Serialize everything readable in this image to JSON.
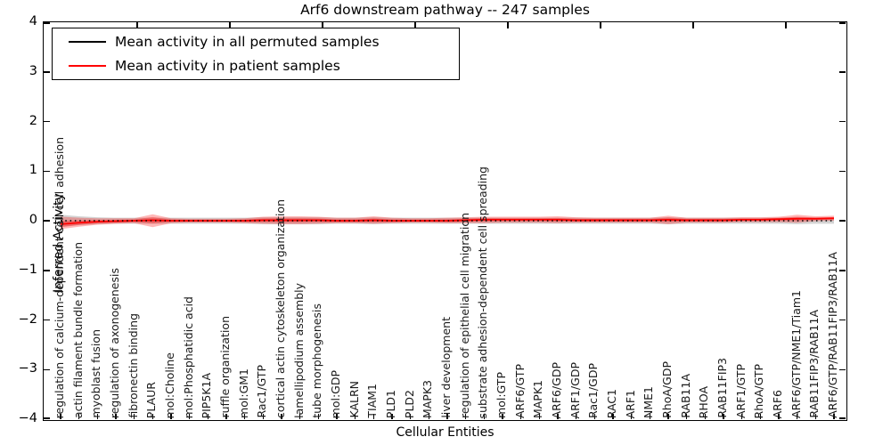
{
  "figure": {
    "title": "Arf6 downstream pathway -- 247 samples"
  },
  "legend": {
    "items": [
      {
        "label": "Mean activity in all permuted samples",
        "color": "#000000"
      },
      {
        "label": "Mean activity in patient samples",
        "color": "#ff0000"
      }
    ]
  },
  "axes": {
    "ylabel": "Inferred Activity",
    "xlabel": "Cellular Entities",
    "ytick_labels": [
      "4",
      "3",
      "2",
      "1",
      "0",
      "−1",
      "−2",
      "−3",
      "−4"
    ]
  },
  "chart_data": {
    "type": "line",
    "title": "Arf6 downstream pathway -- 247 samples",
    "xlabel": "Cellular Entities",
    "ylabel": "Inferred Activity",
    "ylim": [
      -4,
      4
    ],
    "grid": false,
    "legend_position": "upper left",
    "categories": [
      "regulation of calcium-dependent cell-cell adhesion",
      "actin filament bundle formation",
      "myoblast fusion",
      "regulation of axonogenesis",
      "fibronectin binding",
      "PLAUR",
      "mol:Choline",
      "mol:Phosphatidic acid",
      "PIP5K1A",
      "ruffle organization",
      "mol:GM1",
      "Rac1/GTP",
      "cortical actin cytoskeleton organization",
      "lamellipodium assembly",
      "tube morphogenesis",
      "mol:GDP",
      "KALRN",
      "TIAM1",
      "PLD1",
      "PLD2",
      "MAPK3",
      "liver development",
      "regulation of epithelial cell migration",
      "substrate adhesion-dependent cell spreading",
      "mol:GTP",
      "ARF6/GTP",
      "MAPK1",
      "ARF6/GDP",
      "ARF1/GDP",
      "Rac1/GDP",
      "RAC1",
      "ARF1",
      "NME1",
      "RhoA/GDP",
      "RAB11A",
      "RHOA",
      "RAB11FIP3",
      "ARF1/GTP",
      "RhoA/GTP",
      "ARF6",
      "ARF6/GTP/NME1/Tiam1",
      "RAB11FIP3/RAB11A",
      "ARF6/GTP/RAB11FIP3/RAB11A"
    ],
    "series": [
      {
        "name": "Mean activity in all permuted samples",
        "color": "#000000",
        "style": "dotted",
        "values": [
          0,
          0,
          0,
          0,
          0,
          0,
          0,
          0,
          0,
          0,
          0,
          0,
          0,
          0,
          0,
          0,
          0,
          0,
          0,
          0,
          0,
          0,
          0,
          0,
          0,
          0,
          0,
          0,
          0,
          0,
          0,
          0,
          0,
          0,
          0,
          0,
          0,
          0,
          0,
          0,
          0,
          0,
          0
        ]
      },
      {
        "name": "Mean activity in patient samples",
        "color": "#ff0000",
        "style": "solid",
        "values": [
          -0.07,
          -0.04,
          -0.02,
          -0.01,
          0.0,
          0.01,
          0.0,
          0.0,
          0.0,
          0.0,
          0.0,
          0.01,
          0.01,
          0.01,
          0.01,
          0.0,
          0.0,
          0.01,
          0.0,
          0.0,
          0.0,
          0.0,
          0.01,
          0.02,
          0.02,
          0.02,
          0.02,
          0.02,
          0.01,
          0.01,
          0.01,
          0.01,
          0.01,
          0.02,
          0.01,
          0.01,
          0.01,
          0.02,
          0.02,
          0.03,
          0.04,
          0.04,
          0.05
        ]
      }
    ],
    "bands": [
      {
        "name": "permuted samples spread",
        "color": "rgba(110,110,110,0.30)",
        "upper": [
          0.12,
          0.09,
          0.07,
          0.06,
          0.06,
          0.06,
          0.06,
          0.06,
          0.06,
          0.06,
          0.06,
          0.07,
          0.07,
          0.07,
          0.07,
          0.06,
          0.06,
          0.07,
          0.06,
          0.06,
          0.06,
          0.06,
          0.06,
          0.06,
          0.06,
          0.06,
          0.06,
          0.06,
          0.06,
          0.06,
          0.06,
          0.06,
          0.06,
          0.07,
          0.06,
          0.06,
          0.06,
          0.06,
          0.06,
          0.06,
          0.07,
          0.06,
          0.06
        ],
        "lower": [
          -0.12,
          -0.09,
          -0.07,
          -0.06,
          -0.06,
          -0.06,
          -0.06,
          -0.06,
          -0.06,
          -0.06,
          -0.06,
          -0.07,
          -0.07,
          -0.07,
          -0.07,
          -0.06,
          -0.06,
          -0.07,
          -0.06,
          -0.06,
          -0.06,
          -0.06,
          -0.06,
          -0.06,
          -0.06,
          -0.06,
          -0.06,
          -0.06,
          -0.06,
          -0.06,
          -0.06,
          -0.06,
          -0.06,
          -0.07,
          -0.06,
          -0.06,
          -0.06,
          -0.06,
          -0.06,
          -0.06,
          -0.07,
          -0.06,
          -0.06
        ]
      },
      {
        "name": "patient samples spread",
        "color": "rgba(255,0,0,0.28)",
        "upper": [
          0.08,
          0.06,
          0.05,
          0.05,
          0.05,
          0.13,
          0.05,
          0.04,
          0.04,
          0.04,
          0.05,
          0.08,
          0.09,
          0.09,
          0.08,
          0.06,
          0.06,
          0.09,
          0.06,
          0.05,
          0.05,
          0.06,
          0.07,
          0.08,
          0.08,
          0.08,
          0.08,
          0.09,
          0.07,
          0.06,
          0.06,
          0.06,
          0.06,
          0.1,
          0.06,
          0.06,
          0.06,
          0.07,
          0.07,
          0.08,
          0.12,
          0.09,
          0.1
        ],
        "lower": [
          -0.17,
          -0.12,
          -0.08,
          -0.06,
          -0.05,
          -0.13,
          -0.05,
          -0.04,
          -0.04,
          -0.04,
          -0.05,
          -0.06,
          -0.07,
          -0.07,
          -0.06,
          -0.05,
          -0.05,
          -0.06,
          -0.05,
          -0.04,
          -0.04,
          -0.05,
          -0.05,
          -0.05,
          -0.04,
          -0.04,
          -0.04,
          -0.05,
          -0.04,
          -0.04,
          -0.04,
          -0.04,
          -0.04,
          -0.07,
          -0.04,
          -0.04,
          -0.04,
          -0.03,
          -0.03,
          -0.03,
          -0.04,
          -0.01,
          0.0
        ]
      }
    ]
  }
}
